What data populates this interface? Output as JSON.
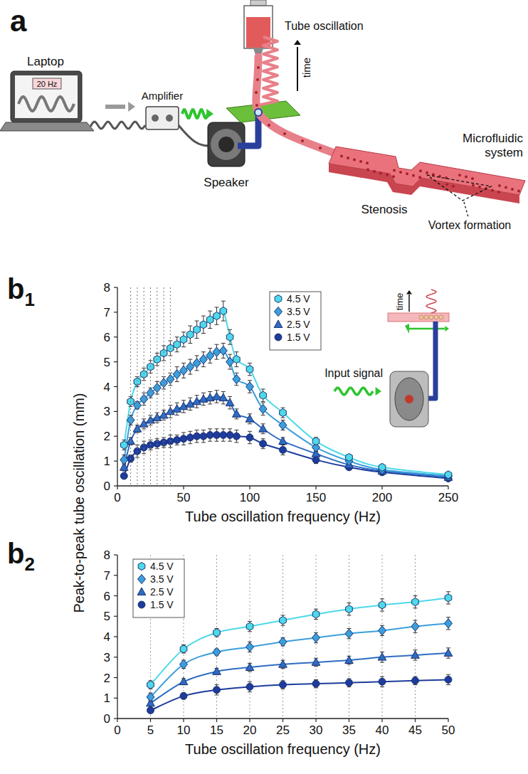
{
  "diagram": {
    "panel_label": "a",
    "laptop": "Laptop",
    "signal": "20 Hz",
    "amplifier": "Amplifier",
    "speaker": "Speaker",
    "tube_oscillation": "Tube oscillation",
    "time": "time",
    "stenosis": "Stenosis",
    "microfluidic_system": "Microfluidic system",
    "vortex_formation": "Vortex formation"
  },
  "chart_data": [
    {
      "type": "line",
      "panel_label": "b1",
      "x_label": "Tube oscillation frequency (Hz)",
      "annotations": [
        "Input signal",
        "time"
      ],
      "x": [
        5,
        10,
        15,
        20,
        25,
        30,
        35,
        40,
        45,
        50,
        55,
        60,
        65,
        70,
        75,
        80,
        85,
        90,
        100,
        110,
        125,
        150,
        175,
        200,
        250
      ],
      "xlim": [
        0,
        250
      ],
      "xticks": [
        0,
        50,
        100,
        150,
        200,
        250
      ],
      "ylim": [
        0,
        8
      ],
      "yticks": [
        0,
        1,
        2,
        3,
        4,
        5,
        6,
        7,
        8
      ],
      "grid": false,
      "legend": "top",
      "series": [
        {
          "name": "4.5 V",
          "color": "#4dd9ea",
          "marker": "hexagon",
          "values": [
            1.65,
            3.4,
            4.2,
            4.5,
            4.8,
            5.1,
            5.35,
            5.55,
            5.7,
            5.9,
            6.1,
            6.3,
            6.5,
            6.7,
            6.85,
            7.05,
            6.0,
            5.1,
            4.7,
            3.65,
            2.95,
            1.8,
            1.15,
            0.75,
            0.45
          ],
          "errors": [
            0.2,
            0.2,
            0.2,
            0.25,
            0.25,
            0.25,
            0.3,
            0.3,
            0.3,
            0.3,
            0.35,
            0.35,
            0.35,
            0.35,
            0.35,
            0.4,
            0.3,
            0.3,
            0.25,
            0.25,
            0.2,
            0.15,
            0.1,
            0.1,
            0.1
          ]
        },
        {
          "name": "3.5 V",
          "color": "#3b9fdc",
          "marker": "diamond",
          "values": [
            1.05,
            2.65,
            3.25,
            3.5,
            3.75,
            3.95,
            4.15,
            4.3,
            4.5,
            4.65,
            4.8,
            4.95,
            5.1,
            5.25,
            5.4,
            5.45,
            5.0,
            4.3,
            4.0,
            3.1,
            2.45,
            1.55,
            1.0,
            0.65,
            0.4
          ],
          "errors": [
            0.2,
            0.2,
            0.15,
            0.25,
            0.2,
            0.25,
            0.25,
            0.25,
            0.3,
            0.3,
            0.3,
            0.3,
            0.3,
            0.3,
            0.3,
            0.3,
            0.3,
            0.25,
            0.25,
            0.25,
            0.2,
            0.15,
            0.1,
            0.1,
            0.05
          ]
        },
        {
          "name": "2.5 V",
          "color": "#2e6cc2",
          "marker": "triangle",
          "values": [
            0.75,
            1.8,
            2.3,
            2.5,
            2.65,
            2.75,
            2.85,
            3.0,
            3.1,
            3.2,
            3.3,
            3.4,
            3.5,
            3.55,
            3.6,
            3.55,
            3.35,
            2.9,
            2.7,
            2.3,
            1.8,
            1.3,
            0.85,
            0.6,
            0.35
          ],
          "errors": [
            0.15,
            0.15,
            0.15,
            0.2,
            0.2,
            0.2,
            0.2,
            0.25,
            0.25,
            0.25,
            0.25,
            0.25,
            0.25,
            0.25,
            0.25,
            0.25,
            0.25,
            0.2,
            0.2,
            0.2,
            0.15,
            0.1,
            0.1,
            0.1,
            0.05
          ]
        },
        {
          "name": "1.5 V",
          "color": "#1d3c9c",
          "marker": "circle",
          "values": [
            0.4,
            1.1,
            1.4,
            1.55,
            1.65,
            1.7,
            1.75,
            1.8,
            1.85,
            1.9,
            1.95,
            2.0,
            2.0,
            2.05,
            2.05,
            2.05,
            2.05,
            2.0,
            1.95,
            1.7,
            1.45,
            1.05,
            0.75,
            0.55,
            0.3
          ],
          "errors": [
            0.1,
            0.15,
            0.25,
            0.25,
            0.2,
            0.2,
            0.2,
            0.25,
            0.2,
            0.25,
            0.25,
            0.25,
            0.25,
            0.25,
            0.25,
            0.25,
            0.25,
            0.25,
            0.25,
            0.2,
            0.2,
            0.15,
            0.1,
            0.1,
            0.05
          ]
        }
      ]
    },
    {
      "type": "line",
      "panel_label": "b2",
      "x_label": "Tube oscillation frequency (Hz)",
      "y_label": "Peak-to-peak tube oscillation (mm)",
      "x": [
        5,
        10,
        15,
        20,
        25,
        30,
        35,
        40,
        45,
        50
      ],
      "xlim": [
        0,
        50
      ],
      "xticks": [
        0,
        5,
        10,
        15,
        20,
        25,
        30,
        35,
        40,
        45,
        50
      ],
      "ylim": [
        0,
        8
      ],
      "yticks": [
        0,
        1,
        2,
        3,
        4,
        5,
        6,
        7,
        8
      ],
      "grid": true,
      "legend": "top-left",
      "series": [
        {
          "name": "4.5 V",
          "color": "#4dd9ea",
          "marker": "hexagon",
          "values": [
            1.65,
            3.4,
            4.2,
            4.5,
            4.8,
            5.1,
            5.35,
            5.55,
            5.7,
            5.9
          ],
          "errors": [
            0.2,
            0.2,
            0.2,
            0.25,
            0.25,
            0.25,
            0.3,
            0.3,
            0.3,
            0.3
          ]
        },
        {
          "name": "3.5 V",
          "color": "#3b9fdc",
          "marker": "diamond",
          "values": [
            1.05,
            2.65,
            3.25,
            3.5,
            3.75,
            3.95,
            4.15,
            4.3,
            4.5,
            4.65
          ],
          "errors": [
            0.2,
            0.2,
            0.15,
            0.25,
            0.2,
            0.25,
            0.25,
            0.25,
            0.3,
            0.3
          ]
        },
        {
          "name": "2.5 V",
          "color": "#2e6cc2",
          "marker": "triangle",
          "values": [
            0.75,
            1.8,
            2.3,
            2.5,
            2.65,
            2.75,
            2.85,
            3.0,
            3.1,
            3.2
          ],
          "errors": [
            0.15,
            0.15,
            0.15,
            0.2,
            0.2,
            0.2,
            0.2,
            0.25,
            0.25,
            0.25
          ]
        },
        {
          "name": "1.5 V",
          "color": "#1d3c9c",
          "marker": "circle",
          "values": [
            0.4,
            1.1,
            1.4,
            1.55,
            1.65,
            1.7,
            1.75,
            1.8,
            1.85,
            1.9
          ],
          "errors": [
            0.1,
            0.15,
            0.25,
            0.25,
            0.2,
            0.2,
            0.2,
            0.25,
            0.2,
            0.25
          ]
        }
      ]
    }
  ]
}
